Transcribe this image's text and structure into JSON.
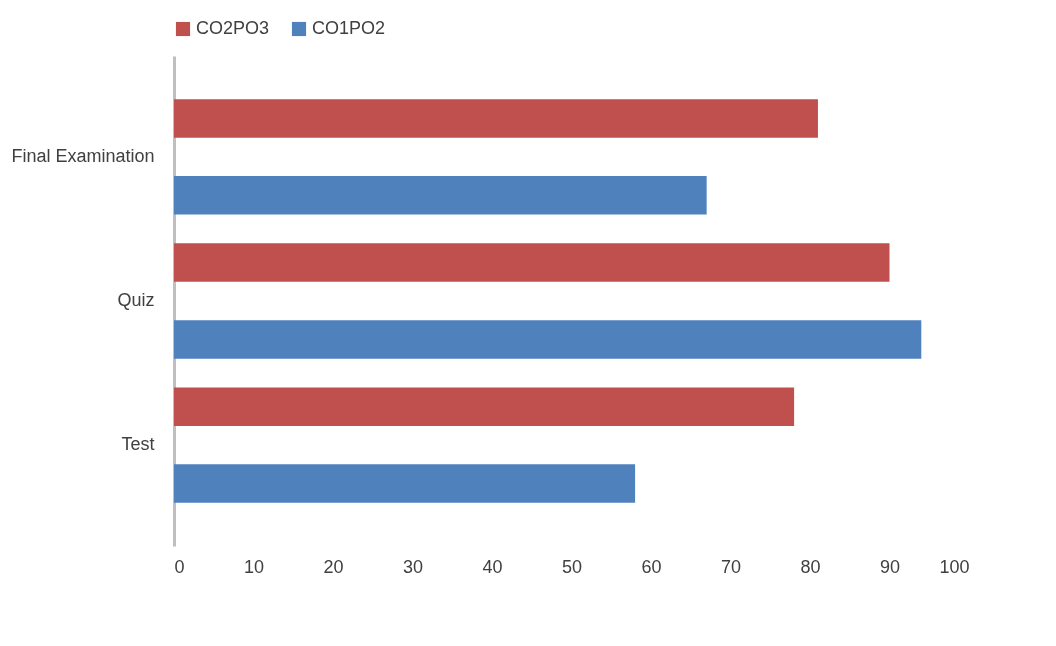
{
  "chart_data": {
    "type": "bar",
    "orientation": "horizontal",
    "categories": [
      "Final Examination",
      "Quiz",
      "Test"
    ],
    "series": [
      {
        "name": "CO2PO3",
        "color": "#c0504d",
        "values": [
          81,
          90,
          78
        ]
      },
      {
        "name": "CO1PO2",
        "color": "#4f81bd",
        "values": [
          67,
          94,
          58
        ]
      }
    ],
    "xlim": [
      0,
      100
    ],
    "xticks": [
      0,
      10,
      20,
      30,
      40,
      50,
      60,
      70,
      80,
      90,
      100
    ],
    "grid": false,
    "legend": "top"
  }
}
